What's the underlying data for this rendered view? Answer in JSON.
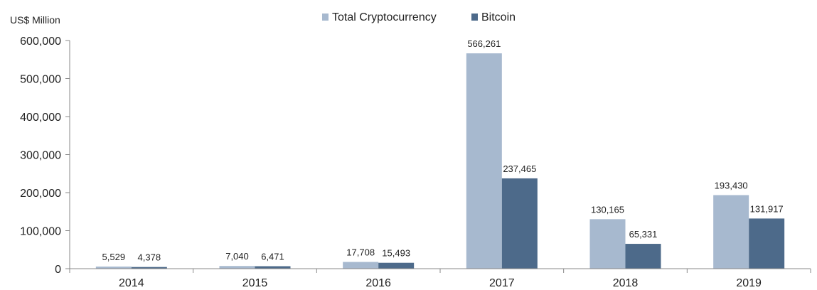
{
  "chart_data": {
    "type": "bar",
    "categories": [
      "2014",
      "2015",
      "2016",
      "2017",
      "2018",
      "2019"
    ],
    "series": [
      {
        "name": "Total Cryptocurrency",
        "color": "#a7b9cf",
        "values": [
          5529,
          7040,
          17708,
          566261,
          130165,
          193430
        ],
        "labels": [
          "5,529",
          "7,040",
          "17,708",
          "566,261",
          "130,165",
          "193,430"
        ]
      },
      {
        "name": "Bitcoin",
        "color": "#4d6a8a",
        "values": [
          4378,
          6471,
          15493,
          237465,
          65331,
          131917
        ],
        "labels": [
          "4,378",
          "6,471",
          "15,493",
          "237,465",
          "65,331",
          "131,917"
        ]
      }
    ],
    "y_unit": "US$ Million",
    "ylim": [
      0,
      600000
    ],
    "yticks": [
      0,
      100000,
      200000,
      300000,
      400000,
      500000,
      600000
    ],
    "ytick_labels": [
      "0",
      "100,000",
      "200,000",
      "300,000",
      "400,000",
      "500,000",
      "600,000"
    ],
    "legend_position": "top-center",
    "grid": false
  }
}
